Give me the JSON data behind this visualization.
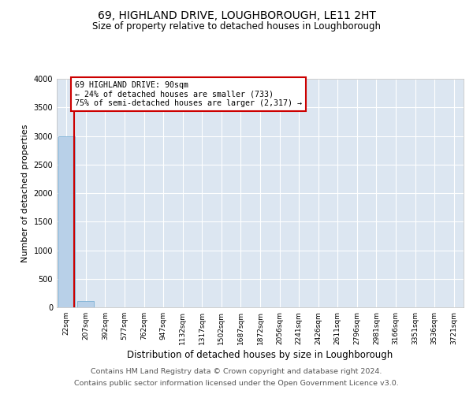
{
  "title": "69, HIGHLAND DRIVE, LOUGHBOROUGH, LE11 2HT",
  "subtitle": "Size of property relative to detached houses in Loughborough",
  "xlabel": "Distribution of detached houses by size in Loughborough",
  "ylabel": "Number of detached properties",
  "categories": [
    "22sqm",
    "207sqm",
    "392sqm",
    "577sqm",
    "762sqm",
    "947sqm",
    "1132sqm",
    "1317sqm",
    "1502sqm",
    "1687sqm",
    "1872sqm",
    "2056sqm",
    "2241sqm",
    "2426sqm",
    "2611sqm",
    "2796sqm",
    "2981sqm",
    "3166sqm",
    "3351sqm",
    "3536sqm",
    "3721sqm"
  ],
  "bar_values": [
    3000,
    110,
    0,
    0,
    0,
    0,
    0,
    0,
    0,
    0,
    0,
    0,
    0,
    0,
    0,
    0,
    0,
    0,
    0,
    0,
    0
  ],
  "bar_color": "#b8d0e8",
  "bar_edge_color": "#7aafd4",
  "ylim": [
    0,
    4000
  ],
  "yticks": [
    0,
    500,
    1000,
    1500,
    2000,
    2500,
    3000,
    3500,
    4000
  ],
  "property_label": "69 HIGHLAND DRIVE: 90sqm",
  "annotation_line1": "← 24% of detached houses are smaller (733)",
  "annotation_line2": "75% of semi-detached houses are larger (2,317) →",
  "footer_line1": "Contains HM Land Registry data © Crown copyright and database right 2024.",
  "footer_line2": "Contains public sector information licensed under the Open Government Licence v3.0.",
  "fig_bg_color": "#ffffff",
  "plot_bg_color": "#dce6f1",
  "grid_color": "#ffffff",
  "title_fontsize": 10,
  "subtitle_fontsize": 8.5,
  "axis_fontsize": 8,
  "tick_fontsize": 6.5,
  "footer_fontsize": 6.8,
  "red_line_x": 0.38
}
